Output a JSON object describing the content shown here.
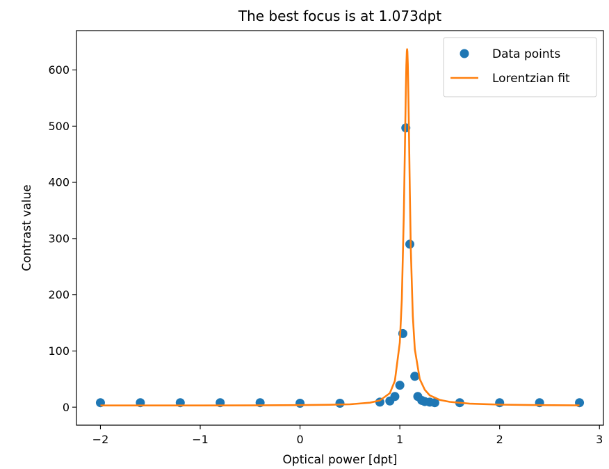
{
  "chart_data": {
    "type": "scatter",
    "title": "The best focus is at 1.073dpt",
    "xlabel": "Optical power [dpt]",
    "ylabel": "Contrast value",
    "xlim": [
      -2.24,
      3.04
    ],
    "ylim": [
      -32,
      670
    ],
    "xticks": [
      -2,
      -1,
      0,
      1,
      2,
      3
    ],
    "xtick_labels": [
      "−2",
      "−1",
      "0",
      "1",
      "2",
      "3"
    ],
    "yticks": [
      0,
      100,
      200,
      300,
      400,
      500,
      600
    ],
    "ytick_labels": [
      "0",
      "100",
      "200",
      "300",
      "400",
      "500",
      "600"
    ],
    "grid": false,
    "legend_position": "top-right",
    "series": [
      {
        "name": "Data points",
        "kind": "scatter",
        "color": "#1f77b4",
        "x": [
          -2.0,
          -1.6,
          -1.2,
          -0.8,
          -0.4,
          0.0,
          0.4,
          0.8,
          0.9,
          0.95,
          1.0,
          1.03,
          1.06,
          1.1,
          1.15,
          1.18,
          1.22,
          1.25,
          1.3,
          1.35,
          1.6,
          2.0,
          2.4,
          2.8
        ],
        "y": [
          8,
          8,
          8,
          8,
          8,
          7,
          7,
          9,
          11,
          19,
          39,
          131,
          497,
          290,
          55,
          19,
          12,
          10,
          9,
          8,
          8,
          8,
          8,
          8
        ]
      },
      {
        "name": "Lorentzian fit",
        "kind": "line",
        "color": "#ff7f0e",
        "x": [
          -2.0,
          -1.5,
          -1.0,
          -0.5,
          0.0,
          0.3,
          0.5,
          0.7,
          0.8,
          0.9,
          0.95,
          1.0,
          1.02,
          1.04,
          1.05,
          1.06,
          1.065,
          1.07,
          1.073,
          1.076,
          1.08,
          1.085,
          1.09,
          1.1,
          1.11,
          1.13,
          1.15,
          1.2,
          1.25,
          1.3,
          1.4,
          1.5,
          1.7,
          2.0,
          2.4,
          2.8
        ],
        "y": [
          3,
          3,
          3,
          3.2,
          3.7,
          4.3,
          5.2,
          8,
          12,
          25,
          47,
          115,
          192,
          345,
          452,
          565,
          608,
          633,
          637,
          633,
          611,
          565,
          505,
          385,
          282,
          162,
          103,
          50,
          31,
          21,
          13,
          9.5,
          6.3,
          4.5,
          3.6,
          3.2
        ]
      }
    ]
  }
}
